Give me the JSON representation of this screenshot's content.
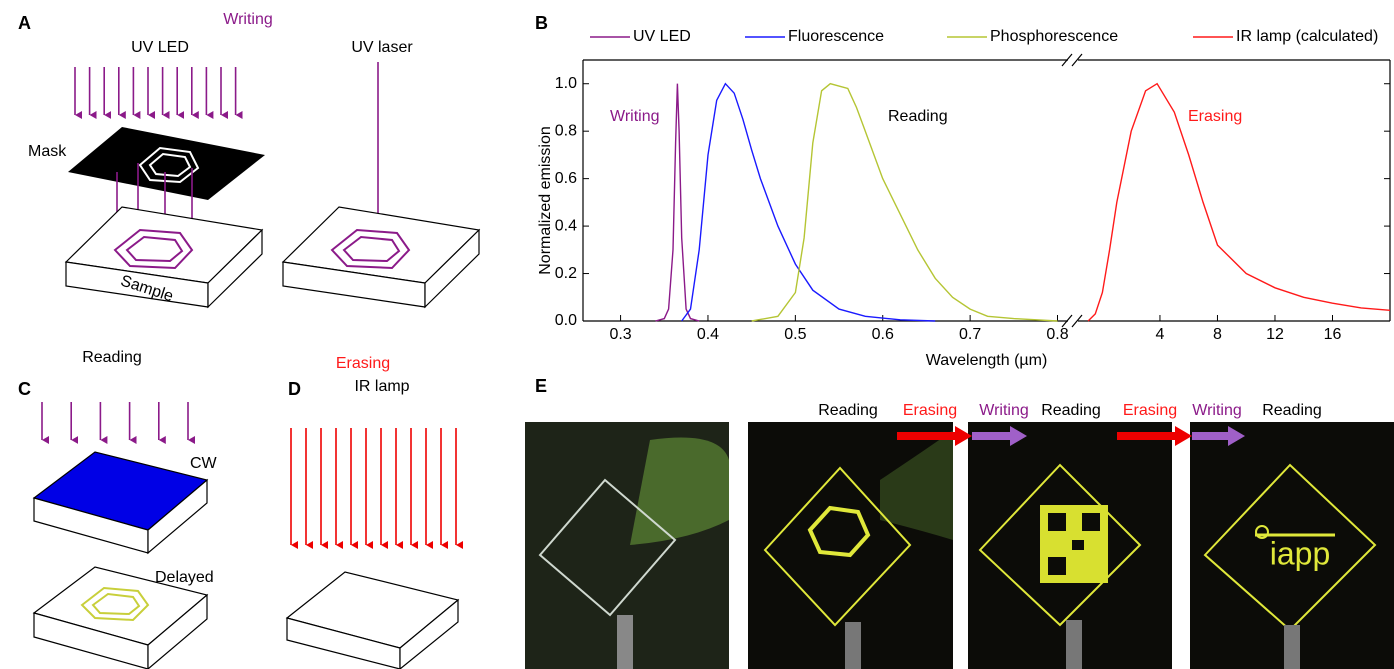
{
  "panels": {
    "a": {
      "label": "A",
      "writing": "Writing",
      "uv_led": "UV LED",
      "uv_laser": "UV laser",
      "mask": "Mask",
      "sample": "Sample"
    },
    "b": {
      "label": "B"
    },
    "c": {
      "label": "C",
      "reading": "Reading",
      "cw": "CW",
      "delayed": "Delayed"
    },
    "d": {
      "label": "D",
      "erasing": "Erasing",
      "ir_lamp": "IR lamp"
    },
    "e": {
      "label": "E",
      "sequence": [
        "Reading",
        "Erasing",
        "Writing",
        "Reading",
        "Erasing",
        "Writing",
        "Reading"
      ],
      "logo": "iapp"
    }
  },
  "chart_data": {
    "type": "line",
    "xlabel": "Wavelength (µm)",
    "ylabel": "Normalized emission",
    "xlim": [
      0.257,
      0.812
    ],
    "xticks": [
      0.3,
      0.4,
      0.5,
      0.6,
      0.7,
      0.8
    ],
    "x2lim": [
      -1.7,
      20
    ],
    "x2ticks": [
      4,
      8,
      12,
      16
    ],
    "ylim": [
      0,
      1.1
    ],
    "yticks": [
      {
        "value": 0,
        "label": "0.0"
      },
      0.2,
      0.4,
      0.6,
      0.8,
      {
        "value": 1,
        "label": "1.0"
      }
    ],
    "series": [
      {
        "name": "UV LED",
        "color": "#8b1a89",
        "x": [
          0.34,
          0.35,
          0.355,
          0.36,
          0.363,
          0.365,
          0.367,
          0.37,
          0.375,
          0.38,
          0.39
        ],
        "values": [
          0,
          0.01,
          0.05,
          0.3,
          0.75,
          1.0,
          0.8,
          0.35,
          0.05,
          0.01,
          0
        ]
      },
      {
        "name": "Fluorescence",
        "color": "#1a1aff",
        "x": [
          0.37,
          0.38,
          0.39,
          0.4,
          0.41,
          0.42,
          0.43,
          0.44,
          0.45,
          0.46,
          0.48,
          0.5,
          0.52,
          0.55,
          0.58,
          0.62,
          0.66
        ],
        "values": [
          0,
          0.05,
          0.3,
          0.7,
          0.93,
          1.0,
          0.96,
          0.85,
          0.72,
          0.6,
          0.4,
          0.24,
          0.13,
          0.05,
          0.02,
          0.005,
          0
        ]
      },
      {
        "name": "Phosphorescence",
        "color": "#b5c534",
        "x": [
          0.45,
          0.48,
          0.5,
          0.51,
          0.52,
          0.53,
          0.54,
          0.55,
          0.56,
          0.57,
          0.58,
          0.6,
          0.62,
          0.64,
          0.66,
          0.68,
          0.7,
          0.72,
          0.75,
          0.8
        ],
        "values": [
          0,
          0.02,
          0.12,
          0.35,
          0.75,
          0.97,
          1.0,
          0.99,
          0.98,
          0.9,
          0.8,
          0.6,
          0.45,
          0.3,
          0.18,
          0.1,
          0.05,
          0.02,
          0.01,
          0
        ]
      },
      {
        "name": "IR lamp (calculated)",
        "color": "#ff1a1a",
        "axis": "x2",
        "x": [
          -1.0,
          -0.5,
          0,
          0.5,
          1,
          2,
          3,
          3.8,
          5,
          6,
          7,
          8,
          10,
          12,
          14,
          16,
          18,
          20
        ],
        "values": [
          0,
          0.03,
          0.12,
          0.3,
          0.5,
          0.8,
          0.97,
          1.0,
          0.88,
          0.7,
          0.5,
          0.32,
          0.2,
          0.14,
          0.1,
          0.075,
          0.055,
          0.045
        ]
      }
    ],
    "annotations": [
      {
        "text": "Writing",
        "color": "#8b1a89"
      },
      {
        "text": "Reading",
        "color": "#000000"
      },
      {
        "text": "Erasing",
        "color": "#ff1a1a"
      }
    ]
  }
}
